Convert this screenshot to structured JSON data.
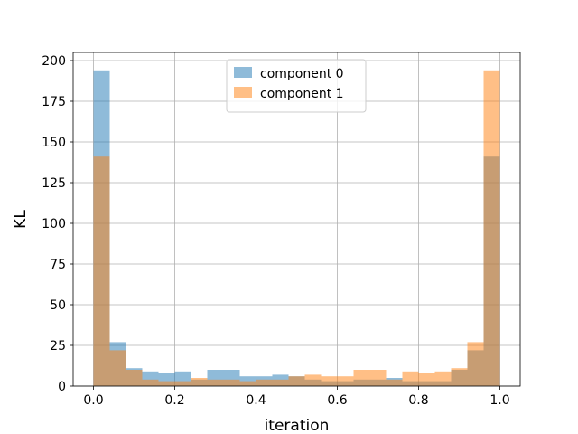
{
  "chart_data": {
    "type": "bar",
    "title": "",
    "xlabel": "iteration",
    "ylabel": "KL",
    "xlim": [
      -0.05,
      1.05
    ],
    "ylim": [
      0,
      205
    ],
    "xticks": [
      0.0,
      0.2,
      0.4,
      0.6,
      0.8,
      1.0
    ],
    "xtick_labels": [
      "0.0",
      "0.2",
      "0.4",
      "0.6",
      "0.8",
      "1.0"
    ],
    "yticks": [
      0,
      25,
      50,
      75,
      100,
      125,
      150,
      175,
      200
    ],
    "ytick_labels": [
      "0",
      "25",
      "50",
      "75",
      "100",
      "125",
      "150",
      "175",
      "200"
    ],
    "grid": true,
    "legend_position": "top-center",
    "bin_edges": [
      0.0,
      0.04,
      0.08,
      0.12,
      0.16,
      0.2,
      0.24,
      0.28,
      0.32,
      0.36,
      0.4,
      0.44,
      0.48,
      0.52,
      0.56,
      0.6,
      0.64,
      0.68,
      0.72,
      0.76,
      0.8,
      0.84,
      0.88,
      0.92,
      0.96,
      1.0
    ],
    "series": [
      {
        "name": "component 0",
        "color": "#1f77b4",
        "opacity": 0.5,
        "values": [
          194,
          27,
          11,
          9,
          8,
          9,
          4,
          10,
          10,
          6,
          6,
          7,
          6,
          4,
          3,
          3,
          4,
          4,
          5,
          3,
          3,
          3,
          10,
          22,
          141
        ]
      },
      {
        "name": "component 1",
        "color": "#ff7f0e",
        "opacity": 0.5,
        "values": [
          141,
          22,
          10,
          4,
          3,
          3,
          5,
          4,
          4,
          3,
          4,
          4,
          6,
          7,
          6,
          6,
          10,
          10,
          4,
          9,
          8,
          9,
          11,
          27,
          194
        ]
      }
    ]
  }
}
